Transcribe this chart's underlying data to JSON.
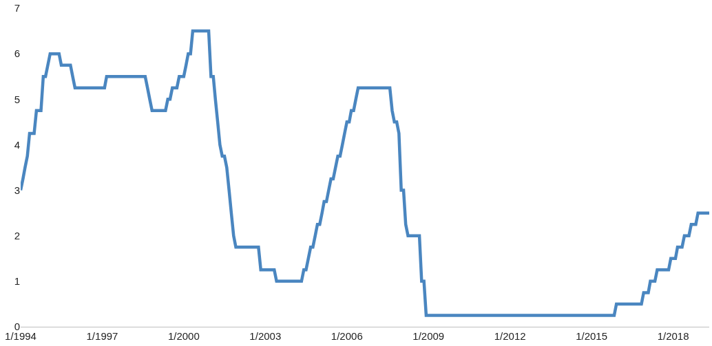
{
  "chart_data": {
    "type": "line",
    "x": [
      "1994-01",
      "1994-02",
      "1994-03",
      "1994-04",
      "1994-05",
      "1994-07",
      "1994-08",
      "1994-10",
      "1994-11",
      "1994-12",
      "1995-02",
      "1995-06",
      "1995-07",
      "1995-11",
      "1995-12",
      "1996-01",
      "1997-02",
      "1997-03",
      "1998-08",
      "1998-09",
      "1998-10",
      "1998-11",
      "1999-05",
      "1999-06",
      "1999-07",
      "1999-08",
      "1999-10",
      "1999-11",
      "2000-01",
      "2000-02",
      "2000-03",
      "2000-04",
      "2000-05",
      "2000-12",
      "2001-01",
      "2001-02",
      "2001-03",
      "2001-04",
      "2001-05",
      "2001-06",
      "2001-07",
      "2001-08",
      "2001-09",
      "2001-10",
      "2001-11",
      "2001-12",
      "2002-10",
      "2002-11",
      "2003-05",
      "2003-06",
      "2004-05",
      "2004-06",
      "2004-07",
      "2004-08",
      "2004-09",
      "2004-10",
      "2004-11",
      "2004-12",
      "2005-01",
      "2005-02",
      "2005-03",
      "2005-04",
      "2005-05",
      "2005-06",
      "2005-07",
      "2005-08",
      "2005-09",
      "2005-10",
      "2005-11",
      "2005-12",
      "2006-01",
      "2006-02",
      "2006-03",
      "2006-04",
      "2006-05",
      "2006-06",
      "2007-08",
      "2007-09",
      "2007-10",
      "2007-11",
      "2007-12",
      "2008-01",
      "2008-02",
      "2008-03",
      "2008-04",
      "2008-09",
      "2008-10",
      "2008-11",
      "2008-12",
      "2015-11",
      "2015-12",
      "2016-11",
      "2016-12",
      "2017-02",
      "2017-03",
      "2017-05",
      "2017-06",
      "2017-11",
      "2017-12",
      "2018-02",
      "2018-03",
      "2018-05",
      "2018-06",
      "2018-08",
      "2018-09",
      "2018-11",
      "2018-12",
      "2019-05"
    ],
    "series": [
      {
        "color": "#4a86c0",
        "values": [
          3.0,
          3.25,
          3.5,
          3.75,
          4.25,
          4.25,
          4.75,
          4.75,
          5.5,
          5.5,
          6.0,
          6.0,
          5.75,
          5.75,
          5.5,
          5.25,
          5.25,
          5.5,
          5.5,
          5.25,
          5.0,
          4.75,
          4.75,
          5.0,
          5.0,
          5.25,
          5.25,
          5.5,
          5.5,
          5.75,
          6.0,
          6.0,
          6.5,
          6.5,
          5.5,
          5.5,
          5.0,
          4.5,
          4.0,
          3.75,
          3.75,
          3.5,
          3.0,
          2.5,
          2.0,
          1.75,
          1.75,
          1.25,
          1.25,
          1.0,
          1.0,
          1.25,
          1.25,
          1.5,
          1.75,
          1.75,
          2.0,
          2.25,
          2.25,
          2.5,
          2.75,
          2.75,
          3.0,
          3.25,
          3.25,
          3.5,
          3.75,
          3.75,
          4.0,
          4.25,
          4.5,
          4.5,
          4.75,
          4.75,
          5.0,
          5.25,
          5.25,
          4.75,
          4.5,
          4.5,
          4.25,
          3.0,
          3.0,
          2.25,
          2.0,
          2.0,
          1.0,
          1.0,
          0.25,
          0.25,
          0.5,
          0.5,
          0.75,
          0.75,
          1.0,
          1.0,
          1.25,
          1.25,
          1.5,
          1.5,
          1.75,
          1.75,
          2.0,
          2.0,
          2.25,
          2.25,
          2.5,
          2.5
        ]
      }
    ],
    "xlim": [
      "1994-01",
      "2019-05"
    ],
    "xticks": [
      {
        "value": "1994-01",
        "label": "1/1994"
      },
      {
        "value": "1997-01",
        "label": "1/1997"
      },
      {
        "value": "2000-01",
        "label": "1/2000"
      },
      {
        "value": "2003-01",
        "label": "1/2003"
      },
      {
        "value": "2006-01",
        "label": "1/2006"
      },
      {
        "value": "2009-01",
        "label": "1/2009"
      },
      {
        "value": "2012-01",
        "label": "1/2012"
      },
      {
        "value": "2015-01",
        "label": "1/2015"
      },
      {
        "value": "2018-01",
        "label": "1/2018"
      }
    ],
    "ylim": [
      0,
      7
    ],
    "yticks": [
      0,
      1,
      2,
      3,
      4,
      5,
      6,
      7
    ],
    "marker": "none",
    "line_style": "solid"
  }
}
